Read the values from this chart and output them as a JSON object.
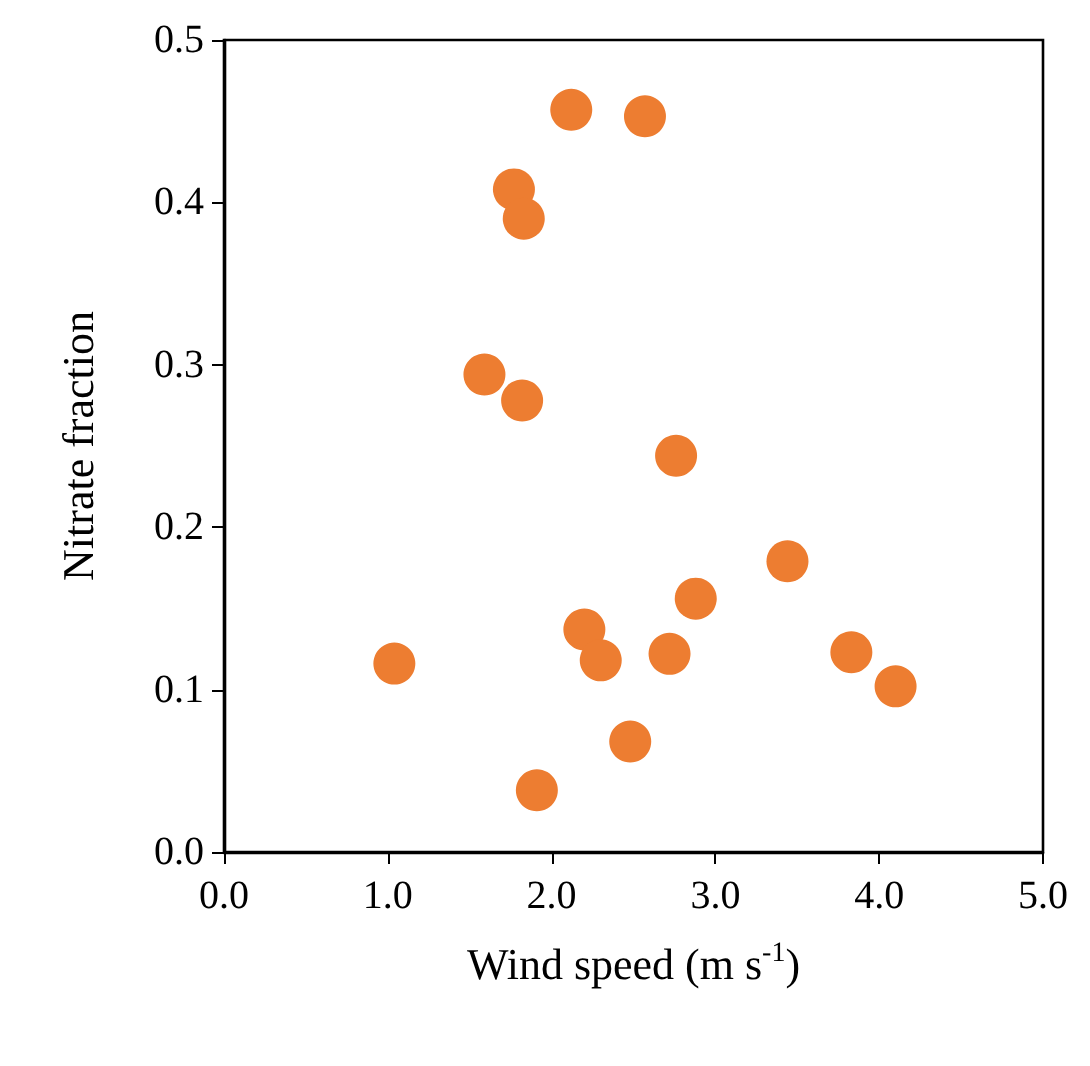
{
  "chart_data": {
    "type": "scatter",
    "xlabel": "Wind speed (m s$^{-1}$)",
    "ylabel": "Nitrate fraction",
    "x": [
      2.12,
      2.57,
      1.77,
      1.83,
      1.59,
      1.82,
      2.76,
      3.44,
      2.88,
      2.2,
      2.3,
      2.72,
      1.04,
      3.83,
      4.1,
      2.48,
      1.91
    ],
    "series": [
      {
        "color": "#ed7d31",
        "values": [
          0.457,
          0.453,
          0.408,
          0.39,
          0.294,
          0.278,
          0.244,
          0.179,
          0.156,
          0.137,
          0.118,
          0.122,
          0.116,
          0.123,
          0.102,
          0.068,
          0.038
        ]
      }
    ],
    "xlim": [
      0,
      5
    ],
    "ylim": [
      0,
      0.5
    ],
    "xticks": [
      {
        "value": 0,
        "label": "0.0"
      },
      {
        "value": 1,
        "label": "1.0"
      },
      {
        "value": 2,
        "label": "2.0"
      },
      {
        "value": 3,
        "label": "3.0"
      },
      {
        "value": 4,
        "label": "4.0"
      },
      {
        "value": 5,
        "label": "5.0"
      }
    ],
    "yticks": [
      {
        "value": 0,
        "label": "0.0"
      },
      {
        "value": 0.1,
        "label": "0.1"
      },
      {
        "value": 0.2,
        "label": "0.2"
      },
      {
        "value": 0.3,
        "label": "0.3"
      },
      {
        "value": 0.4,
        "label": "0.4"
      },
      {
        "value": 0.5,
        "label": "0.5"
      }
    ],
    "grid": false,
    "marker": "circle"
  }
}
